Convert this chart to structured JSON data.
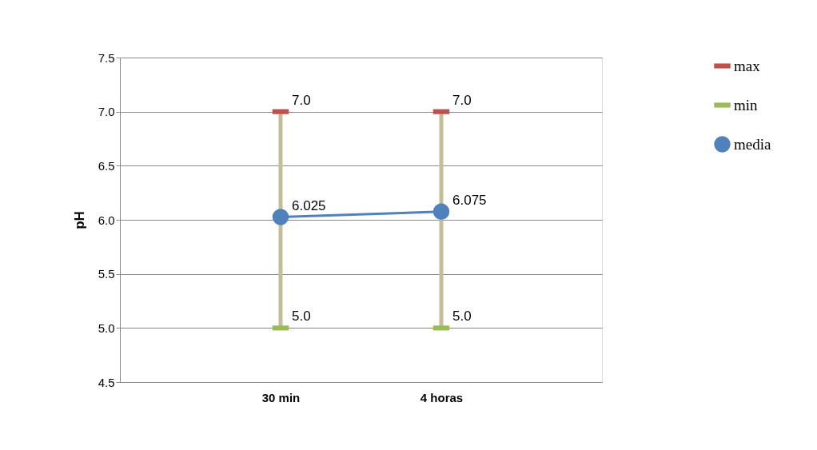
{
  "chart_data": {
    "type": "line",
    "categories": [
      "30 min",
      "4 horas"
    ],
    "ylabel": "pH",
    "ylim": [
      4.5,
      7.5
    ],
    "yticks": [
      {
        "value": 4.5,
        "label": "4.5"
      },
      {
        "value": 5,
        "label": "5.0"
      },
      {
        "value": 5.5,
        "label": "5.5"
      },
      {
        "value": 6,
        "label": "6.0"
      },
      {
        "value": 6.5,
        "label": "6.5"
      },
      {
        "value": 7,
        "label": "7.0"
      },
      {
        "value": 7.5,
        "label": "7.5"
      }
    ],
    "grid": "y",
    "legend": "right",
    "series": [
      {
        "type": "bar",
        "color": "#c4bd97",
        "base": [
          5.0,
          5.0
        ],
        "values": [
          2.0,
          2.0
        ]
      },
      {
        "name": "max",
        "type": "scatter",
        "color": "#c0504d",
        "values": [
          7.0,
          7.0
        ],
        "value_labels": [
          "7.0",
          "7.0"
        ]
      },
      {
        "name": "min",
        "type": "scatter",
        "color": "#9bbb59",
        "values": [
          5.0,
          5.0
        ],
        "value_labels": [
          "5.0",
          "5.0"
        ]
      },
      {
        "name": "media",
        "marker": "circle",
        "color": "#4f81bd",
        "values": [
          6.025,
          6.075
        ],
        "value_labels": [
          "6.025",
          "6.075"
        ]
      }
    ]
  }
}
